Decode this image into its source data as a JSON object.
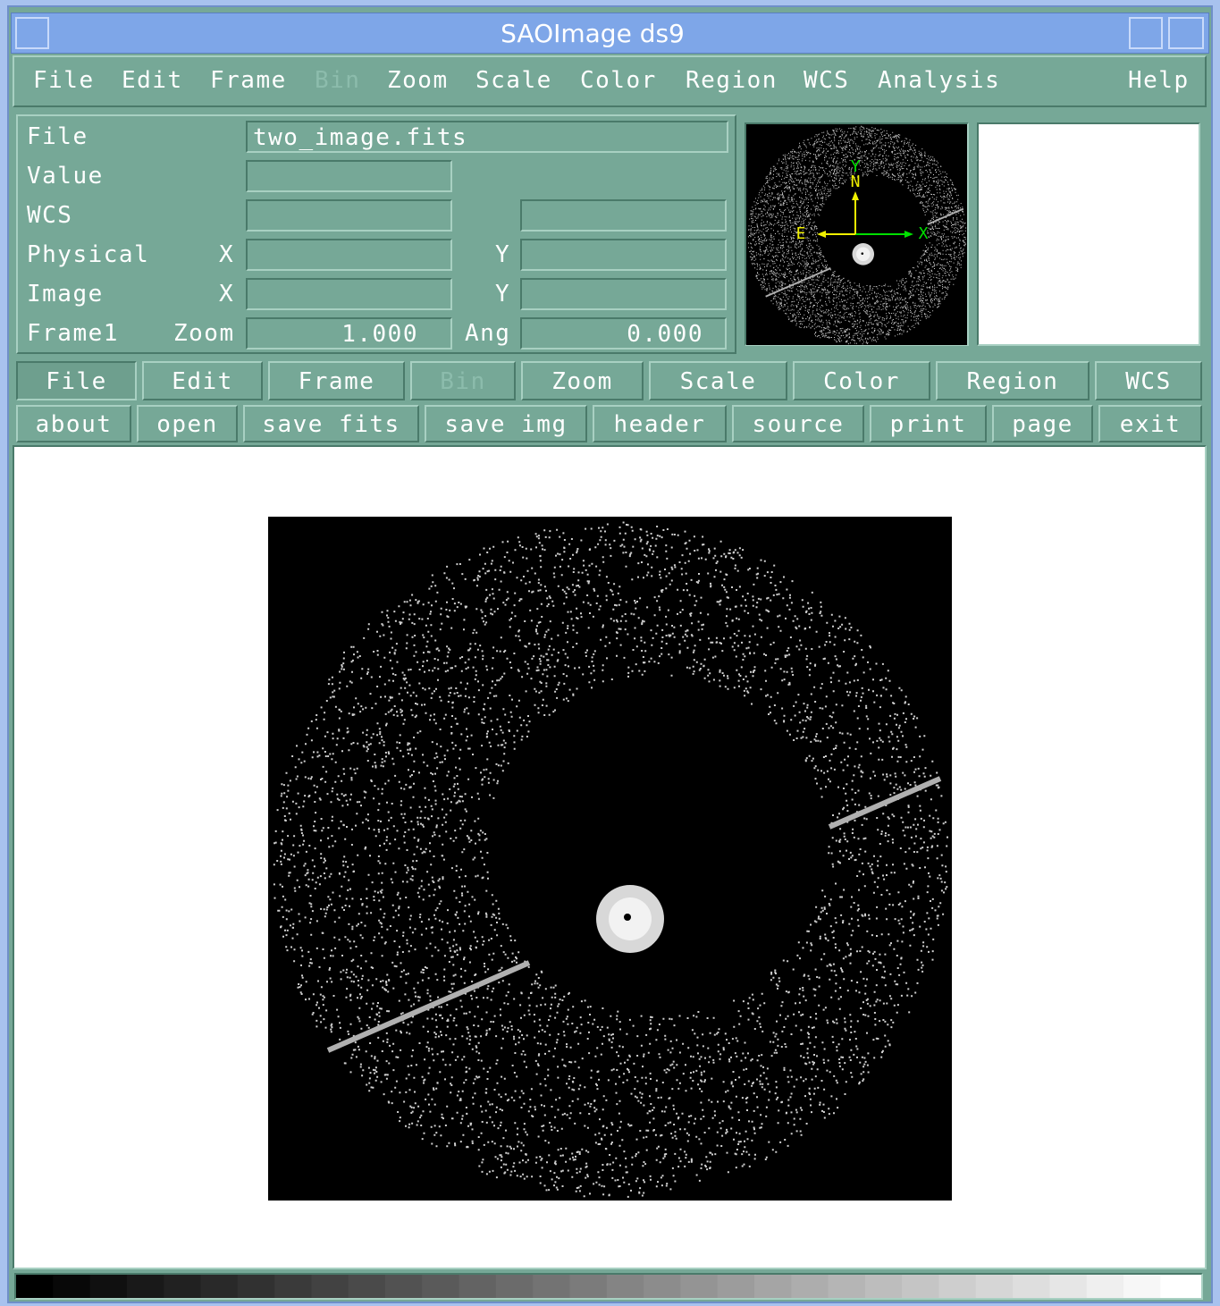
{
  "window": {
    "title": "SAOImage ds9"
  },
  "menubar": [
    {
      "label": "File"
    },
    {
      "label": "Edit"
    },
    {
      "label": "Frame"
    },
    {
      "label": "Bin",
      "disabled": true
    },
    {
      "label": "Zoom"
    },
    {
      "label": "Scale"
    },
    {
      "label": "Color"
    },
    {
      "label": "Region"
    },
    {
      "label": "WCS"
    },
    {
      "label": "Analysis"
    },
    {
      "label": "Help"
    }
  ],
  "info_panel": {
    "rows": [
      {
        "label": "File",
        "value": "two_image.fits"
      },
      {
        "label": "Value"
      },
      {
        "label": "WCS"
      },
      {
        "label": "Physical",
        "x_label": "X",
        "y_label": "Y"
      },
      {
        "label": "Image",
        "x_label": "X",
        "y_label": "Y"
      },
      {
        "label": "Frame1",
        "zoom_label": "Zoom",
        "zoom": "1.000",
        "angle_label": "Ang",
        "angle": "0.000"
      }
    ]
  },
  "panner": {
    "compass": [
      "Y",
      "N",
      "E",
      "X"
    ]
  },
  "buttonbar": {
    "groups": [
      {
        "label": "File",
        "selected": true
      },
      {
        "label": "Edit"
      },
      {
        "label": "Frame"
      },
      {
        "label": "Bin",
        "disabled": true
      },
      {
        "label": "Zoom"
      },
      {
        "label": "Scale"
      },
      {
        "label": "Color"
      },
      {
        "label": "Region"
      },
      {
        "label": "WCS"
      }
    ],
    "buttons": [
      "about",
      "open",
      "save fits",
      "save img",
      "header",
      "source",
      "print",
      "page",
      "exit"
    ]
  }
}
